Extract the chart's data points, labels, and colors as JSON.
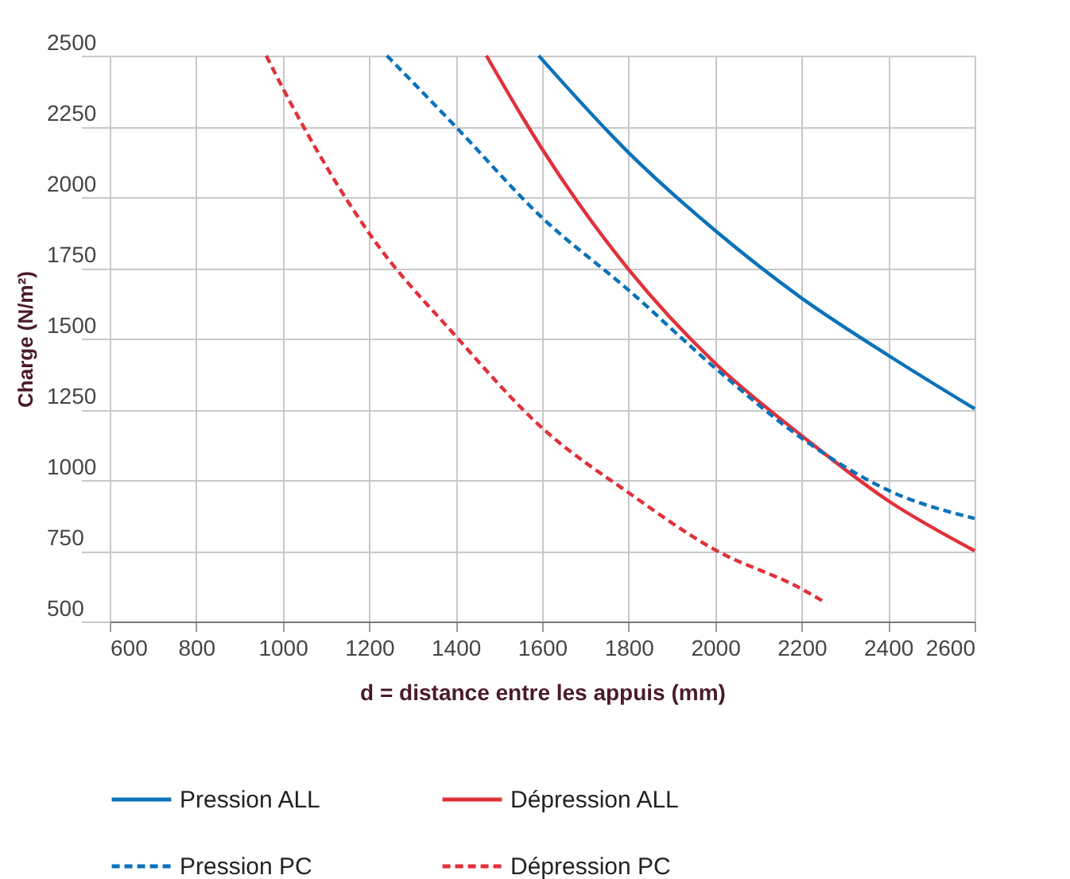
{
  "chart_data": {
    "type": "line",
    "xlabel": "d = distance entre les appuis (mm)",
    "ylabel": "Charge (N/m²)",
    "xlim": [
      600,
      2600
    ],
    "xticks": [
      600,
      800,
      1000,
      1200,
      1400,
      1600,
      1800,
      2000,
      2200,
      2400,
      2600
    ],
    "ylim": [
      500,
      2500
    ],
    "yticks": [
      500,
      750,
      1000,
      1250,
      1500,
      1750,
      2000,
      2250,
      2500
    ],
    "grid": true,
    "legend": "bottom",
    "marker": "none",
    "series": [
      {
        "name": "Pression ALL",
        "color": "#0b72b9",
        "line_style": "solid",
        "x": [
          1592,
          1800,
          2000,
          2200,
          2400,
          2600
        ],
        "values": [
          2500,
          2157,
          1882,
          1643,
          1441,
          1252
        ]
      },
      {
        "name": "Dépression ALL",
        "color": "#e0313a",
        "line_style": "solid",
        "x": [
          1471,
          1557,
          1600,
          1800,
          2000,
          2200,
          2400,
          2600
        ],
        "values": [
          2500,
          2276,
          2170,
          1744,
          1413,
          1157,
          927,
          750
        ]
      },
      {
        "name": "Pression PC",
        "color": "#0b72b9",
        "line_style": "dashed",
        "x": [
          1241,
          1400,
          1600,
          1800,
          2000,
          2200,
          2400,
          2600
        ],
        "values": [
          2500,
          2249,
          1927,
          1671,
          1396,
          1148,
          964,
          864
        ]
      },
      {
        "name": "Dépression PC",
        "color": "#e0313a",
        "line_style": "dashed",
        "x": [
          962,
          1000,
          1200,
          1400,
          1600,
          1800,
          2000,
          2200,
          2256
        ],
        "values": [
          2500,
          2386,
          1872,
          1509,
          1184,
          955,
          753,
          615,
          566
        ]
      }
    ]
  }
}
